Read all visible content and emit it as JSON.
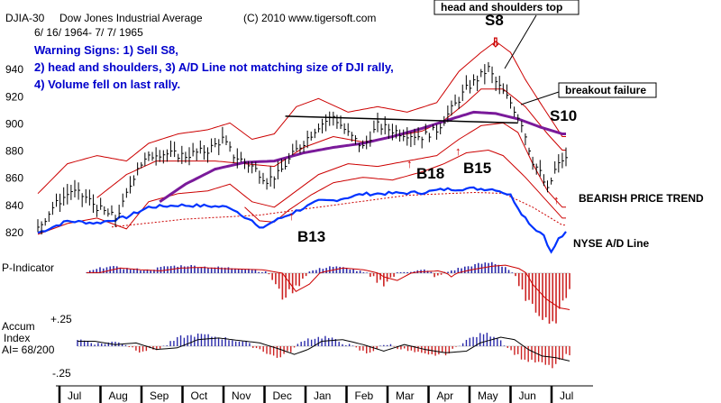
{
  "header": {
    "ticker": "DJIA-30",
    "name": "Dow Jones Industrial Average",
    "copyright": "(C) 2010 www.tigersoft.com",
    "date_range": "6/ 16/ 1964- 7/ 7/ 1965"
  },
  "warnings": [
    "Warning Signs: 1) Sell S8,",
    "2) head and shoulders, 3) A/D Line not matching size of DJI rally,",
    "4) Volume fell on last rally."
  ],
  "annotations": {
    "head_shoulders": "head and shoulders top",
    "s8": "S8",
    "breakout_failure": "breakout failure",
    "s10": "S10",
    "b18": "B18",
    "b15": "B15",
    "b13": "B13",
    "bearish": "BEARISH PRICE TREND",
    "nyse_ad": "NYSE A/D Line"
  },
  "panels": {
    "p_indicator": "P-Indicator",
    "accum_title_1": "Accum",
    "accum_title_2": "Index",
    "accum_ai": "AI= 68/200",
    "accum_top": "+.25",
    "accum_bottom": "-.25"
  },
  "colors": {
    "blue_text": "#0000cc",
    "ad_line": "#0033ff",
    "ma_purple": "#7a1a9a",
    "band_red": "#cc0000",
    "pos_bar": "#2a2aaa",
    "neg_bar": "#cc2222",
    "price_bar": "#000000"
  },
  "chart_data": {
    "type": "line",
    "y_ticks": [
      820,
      840,
      860,
      880,
      900,
      920,
      940
    ],
    "ylim": [
      808,
      962
    ],
    "months": [
      "Jul",
      "Aug",
      "Sep",
      "Oct",
      "Nov",
      "Dec",
      "Jan",
      "Feb",
      "Mar",
      "Apr",
      "May",
      "Jun",
      "Jul"
    ],
    "price_keys": [
      [
        0,
        822
      ],
      [
        4,
        838
      ],
      [
        9,
        850
      ],
      [
        13,
        845
      ],
      [
        17,
        836
      ],
      [
        21,
        830
      ],
      [
        23,
        840
      ],
      [
        27,
        868
      ],
      [
        32,
        878
      ],
      [
        40,
        876
      ],
      [
        46,
        880
      ],
      [
        50,
        888
      ],
      [
        53,
        876
      ],
      [
        58,
        868
      ],
      [
        62,
        858
      ],
      [
        65,
        862
      ],
      [
        70,
        880
      ],
      [
        76,
        898
      ],
      [
        80,
        905
      ],
      [
        84,
        892
      ],
      [
        88,
        882
      ],
      [
        92,
        898
      ],
      [
        98,
        893
      ],
      [
        104,
        890
      ],
      [
        108,
        895
      ],
      [
        112,
        910
      ],
      [
        116,
        925
      ],
      [
        120,
        935
      ],
      [
        122,
        940
      ],
      [
        124,
        930
      ],
      [
        128,
        915
      ],
      [
        131,
        900
      ],
      [
        134,
        872
      ],
      [
        136,
        863
      ],
      [
        138,
        850
      ],
      [
        140,
        865
      ],
      [
        142,
        873
      ]
    ],
    "ma_keys": [
      [
        0,
        null
      ],
      [
        33,
        842
      ],
      [
        40,
        855
      ],
      [
        48,
        866
      ],
      [
        56,
        871
      ],
      [
        64,
        872
      ],
      [
        72,
        878
      ],
      [
        80,
        882
      ],
      [
        88,
        885
      ],
      [
        96,
        890
      ],
      [
        104,
        896
      ],
      [
        112,
        903
      ],
      [
        118,
        908
      ],
      [
        124,
        907
      ],
      [
        130,
        903
      ],
      [
        136,
        897
      ],
      [
        142,
        892
      ]
    ],
    "upper_keys": [
      [
        0,
        848
      ],
      [
        8,
        870
      ],
      [
        16,
        876
      ],
      [
        24,
        872
      ],
      [
        30,
        885
      ],
      [
        38,
        892
      ],
      [
        46,
        895
      ],
      [
        52,
        900
      ],
      [
        58,
        888
      ],
      [
        64,
        892
      ],
      [
        70,
        912
      ],
      [
        76,
        918
      ],
      [
        84,
        908
      ],
      [
        92,
        912
      ],
      [
        100,
        908
      ],
      [
        108,
        915
      ],
      [
        114,
        938
      ],
      [
        120,
        952
      ],
      [
        124,
        960
      ],
      [
        128,
        952
      ],
      [
        132,
        932
      ],
      [
        136,
        915
      ],
      [
        142,
        890
      ]
    ],
    "lower_keys": [
      [
        0,
        818
      ],
      [
        8,
        826
      ],
      [
        16,
        830
      ],
      [
        24,
        822
      ],
      [
        30,
        842
      ],
      [
        38,
        848
      ],
      [
        46,
        850
      ],
      [
        52,
        855
      ],
      [
        58,
        842
      ],
      [
        64,
        838
      ],
      [
        70,
        850
      ],
      [
        76,
        862
      ],
      [
        84,
        870
      ],
      [
        92,
        868
      ],
      [
        100,
        872
      ],
      [
        108,
        876
      ],
      [
        114,
        888
      ],
      [
        120,
        898
      ],
      [
        126,
        900
      ],
      [
        130,
        893
      ],
      [
        134,
        870
      ],
      [
        138,
        850
      ],
      [
        142,
        838
      ]
    ],
    "band2_upper_keys": [
      [
        0,
        null
      ],
      [
        16,
        845
      ],
      [
        24,
        862
      ],
      [
        32,
        872
      ],
      [
        40,
        872
      ],
      [
        48,
        872
      ],
      [
        56,
        870
      ],
      [
        64,
        868
      ],
      [
        72,
        882
      ],
      [
        80,
        890
      ],
      [
        88,
        886
      ],
      [
        96,
        890
      ],
      [
        104,
        894
      ],
      [
        110,
        902
      ],
      [
        116,
        915
      ],
      [
        120,
        925
      ],
      [
        126,
        925
      ],
      [
        132,
        912
      ],
      [
        138,
        892
      ],
      [
        142,
        880
      ]
    ],
    "band2_lower_keys": [
      [
        0,
        null
      ],
      [
        56,
        838
      ],
      [
        60,
        828
      ],
      [
        64,
        827
      ],
      [
        68,
        836
      ],
      [
        74,
        847
      ],
      [
        80,
        856
      ],
      [
        88,
        860
      ],
      [
        96,
        858
      ],
      [
        104,
        864
      ],
      [
        110,
        870
      ],
      [
        116,
        878
      ],
      [
        122,
        880
      ],
      [
        126,
        876
      ],
      [
        132,
        860
      ],
      [
        138,
        842
      ],
      [
        142,
        830
      ]
    ],
    "ad_keys": [
      [
        0,
        -0.1
      ],
      [
        8,
        0.2
      ],
      [
        16,
        0.15
      ],
      [
        24,
        0.3
      ],
      [
        30,
        0.55
      ],
      [
        38,
        0.6
      ],
      [
        46,
        0.58
      ],
      [
        52,
        0.55
      ],
      [
        58,
        0.2
      ],
      [
        60,
        0.0
      ],
      [
        64,
        0.2
      ],
      [
        70,
        0.45
      ],
      [
        76,
        0.7
      ],
      [
        80,
        0.72
      ],
      [
        88,
        0.88
      ],
      [
        96,
        0.9
      ],
      [
        104,
        0.92
      ],
      [
        110,
        1.0
      ],
      [
        118,
        1.02
      ],
      [
        124,
        1.0
      ],
      [
        128,
        0.85
      ],
      [
        131,
        0.4
      ],
      [
        134,
        0.05
      ],
      [
        137,
        -0.15
      ],
      [
        139,
        -0.6
      ],
      [
        141,
        -0.25
      ],
      [
        143,
        -0.1
      ]
    ],
    "ad_ma_keys": [
      [
        0,
        null
      ],
      [
        20,
        0.05
      ],
      [
        40,
        0.25
      ],
      [
        60,
        0.35
      ],
      [
        80,
        0.6
      ],
      [
        100,
        0.85
      ],
      [
        118,
        0.92
      ],
      [
        126,
        0.9
      ],
      [
        134,
        0.55
      ],
      [
        142,
        0.1
      ]
    ],
    "p_keys": [
      [
        0,
        0.05
      ],
      [
        6,
        0.45
      ],
      [
        12,
        0.3
      ],
      [
        18,
        0.2
      ],
      [
        24,
        0.45
      ],
      [
        30,
        0.5
      ],
      [
        36,
        0.4
      ],
      [
        42,
        0.35
      ],
      [
        48,
        0.3
      ],
      [
        54,
        0.0
      ],
      [
        58,
        -0.5
      ],
      [
        62,
        -0.3
      ],
      [
        66,
        0.1
      ],
      [
        72,
        0.45
      ],
      [
        78,
        0.3
      ],
      [
        84,
        -0.1
      ],
      [
        88,
        -0.2
      ],
      [
        94,
        0.1
      ],
      [
        100,
        0.2
      ],
      [
        104,
        -0.1
      ],
      [
        110,
        0.3
      ],
      [
        116,
        0.6
      ],
      [
        120,
        0.7
      ],
      [
        124,
        0.4
      ],
      [
        128,
        -0.3
      ],
      [
        132,
        -0.7
      ],
      [
        136,
        -0.95
      ],
      [
        139,
        -1.0
      ],
      [
        141,
        -0.6
      ],
      [
        143,
        -0.3
      ]
    ],
    "accum_keys": [
      [
        0,
        0.3
      ],
      [
        6,
        0.1
      ],
      [
        12,
        0.2
      ],
      [
        18,
        -0.2
      ],
      [
        24,
        -0.1
      ],
      [
        30,
        0.4
      ],
      [
        36,
        0.5
      ],
      [
        42,
        0.35
      ],
      [
        48,
        0.2
      ],
      [
        54,
        -0.2
      ],
      [
        58,
        -0.5
      ],
      [
        62,
        -0.2
      ],
      [
        66,
        0.3
      ],
      [
        72,
        0.4
      ],
      [
        78,
        0.1
      ],
      [
        84,
        -0.3
      ],
      [
        90,
        0.1
      ],
      [
        96,
        -0.2
      ],
      [
        102,
        -0.4
      ],
      [
        108,
        -0.3
      ],
      [
        112,
        0.2
      ],
      [
        118,
        0.55
      ],
      [
        122,
        0.4
      ],
      [
        126,
        -0.2
      ],
      [
        130,
        -0.6
      ],
      [
        134,
        -0.7
      ],
      [
        138,
        -0.9
      ],
      [
        142,
        -0.4
      ]
    ],
    "neckline": [
      [
        67,
        905
      ],
      [
        130,
        900
      ]
    ]
  }
}
